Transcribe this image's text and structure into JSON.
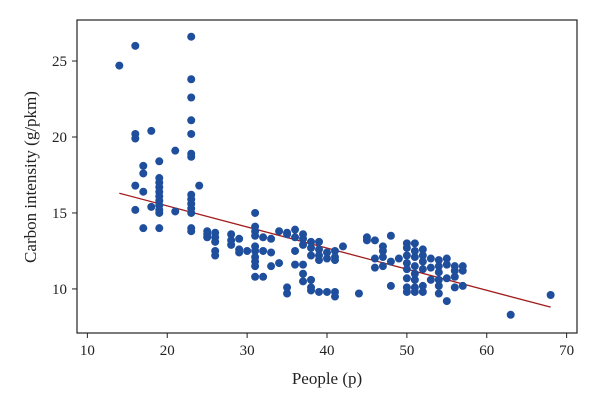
{
  "chart_data": {
    "type": "scatter",
    "title": "",
    "xlabel": "People (p)",
    "ylabel": "Carbon intensity (g/pkm)",
    "xlim": [
      8.7,
      71.3
    ],
    "ylim": [
      7.1,
      27.7
    ],
    "xticks": [
      10,
      20,
      30,
      40,
      50,
      60,
      70
    ],
    "yticks": [
      10,
      15,
      20,
      25
    ],
    "grid": false,
    "point_color": "#1f4e9c",
    "trend_color": "#a01c1c",
    "trendline": {
      "x": [
        14,
        68
      ],
      "y": [
        16.3,
        8.8
      ]
    },
    "points": [
      [
        14,
        [
          24.7
        ]
      ],
      [
        16,
        [
          26.0,
          20.2,
          19.9,
          16.8,
          15.2
        ]
      ],
      [
        17,
        [
          18.1,
          17.6,
          16.4,
          14.0
        ]
      ],
      [
        18,
        [
          20.4,
          15.4
        ]
      ],
      [
        19,
        [
          18.4,
          17.3,
          17.0,
          16.7,
          16.4,
          16.1,
          15.8,
          15.5,
          15.2,
          15.0,
          14.0
        ]
      ],
      [
        21,
        [
          19.1,
          15.1
        ]
      ],
      [
        23,
        [
          26.6,
          23.8,
          22.6,
          21.1,
          20.2,
          18.9,
          18.7,
          16.2,
          15.9,
          15.6,
          15.3,
          15.0,
          14.0,
          13.8
        ]
      ],
      [
        24,
        [
          16.8
        ]
      ],
      [
        25,
        [
          13.8,
          13.6,
          13.4
        ]
      ],
      [
        26,
        [
          13.7,
          13.4,
          13.1,
          12.5,
          12.2
        ]
      ],
      [
        28,
        [
          13.6,
          13.2,
          12.9
        ]
      ],
      [
        29,
        [
          13.3,
          12.6,
          12.4
        ]
      ],
      [
        30,
        [
          12.5
        ]
      ],
      [
        31,
        [
          15.0,
          14.1,
          13.8,
          13.5,
          12.8,
          12.5,
          12.1,
          11.8,
          11.5,
          10.8
        ]
      ],
      [
        32,
        [
          13.4,
          12.5,
          10.8
        ]
      ],
      [
        33,
        [
          13.3,
          12.4,
          11.5
        ]
      ],
      [
        34,
        [
          13.8,
          11.7
        ]
      ],
      [
        35,
        [
          13.7,
          13.6,
          10.1,
          9.7
        ]
      ],
      [
        36,
        [
          13.9,
          13.4,
          12.5,
          11.6
        ]
      ],
      [
        37,
        [
          13.6,
          13.3,
          12.9,
          11.6,
          11.0,
          10.5
        ]
      ],
      [
        38,
        [
          13.1,
          12.7,
          12.2,
          10.6,
          10.1,
          9.9
        ]
      ],
      [
        39,
        [
          13.1,
          12.6,
          12.2,
          11.9,
          9.8
        ]
      ],
      [
        40,
        [
          12.4,
          12.0,
          9.8
        ]
      ],
      [
        41,
        [
          12.5,
          12.1,
          11.9,
          9.8,
          9.5
        ]
      ],
      [
        42,
        [
          12.8
        ]
      ],
      [
        44,
        [
          9.7
        ]
      ],
      [
        45,
        [
          13.4,
          13.2
        ]
      ],
      [
        46,
        [
          13.2,
          12.0,
          11.4
        ]
      ],
      [
        47,
        [
          12.8,
          12.5,
          12.1,
          11.5
        ]
      ],
      [
        48,
        [
          13.5,
          11.8,
          10.2
        ]
      ],
      [
        49,
        [
          12.0
        ]
      ],
      [
        50,
        [
          13.0,
          12.7,
          12.2,
          11.7,
          11.3,
          10.7,
          10.1,
          9.8
        ]
      ],
      [
        51,
        [
          13.0,
          12.5,
          12.1,
          11.5,
          11.0,
          10.6,
          10.1,
          9.8
        ]
      ],
      [
        52,
        [
          12.6,
          12.2,
          11.8,
          11.3,
          10.2,
          9.8
        ]
      ],
      [
        53,
        [
          12.0,
          11.4,
          10.6
        ]
      ],
      [
        54,
        [
          11.9,
          11.5,
          11.1,
          10.6,
          10.2,
          9.7
        ]
      ],
      [
        55,
        [
          12.0,
          11.6,
          10.7,
          9.2
        ]
      ],
      [
        56,
        [
          11.5,
          11.2,
          10.8,
          10.1
        ]
      ],
      [
        57,
        [
          11.5,
          11.2,
          10.2
        ]
      ],
      [
        63,
        [
          8.3
        ]
      ],
      [
        68,
        [
          9.6
        ]
      ]
    ]
  }
}
